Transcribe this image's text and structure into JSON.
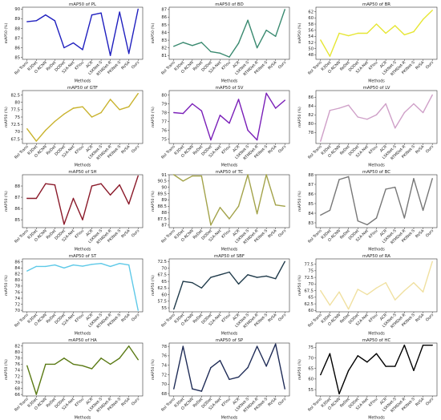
{
  "chart_data": [
    {
      "type": "line",
      "title": "mAP50 of PL",
      "xlabel": "Methods",
      "ylabel": "mAP50 (%)",
      "ylim": [
        84.8,
        90.2
      ],
      "yticks": [
        85,
        86,
        87,
        88,
        89,
        90
      ],
      "color": "#1f1fbf",
      "categories": [
        "RoI Trans",
        "R3Det",
        "O-RCNN",
        "ReDet",
        "DODet",
        "S2A-Net",
        "KFIou",
        "ACR",
        "LSKNet-S",
        "RTMDet-R",
        "PKINet-S",
        "RVSA",
        "Ours"
      ],
      "values": [
        88.7,
        88.8,
        89.4,
        88.8,
        86.0,
        86.5,
        85.8,
        89.4,
        89.6,
        85.2,
        89.7,
        85.4,
        90.0
      ]
    },
    {
      "type": "line",
      "title": "mAP50 of BD",
      "xlabel": "Methods",
      "ylabel": "mAP50 (%)",
      "ylim": [
        80.5,
        87.3
      ],
      "yticks": [
        81,
        82,
        83,
        84,
        85,
        86,
        87
      ],
      "color": "#3a8a70",
      "categories": [
        "RoI Trans",
        "R3Det",
        "O-RCNN",
        "ReDet",
        "DODet",
        "S2A-Net",
        "KFIou",
        "ACR",
        "LSKNet-S",
        "RTMDet-R",
        "PKINet-S",
        "RVSA",
        "Ours"
      ],
      "values": [
        82.2,
        82.7,
        82.3,
        82.7,
        81.5,
        81.3,
        80.8,
        82.6,
        85.6,
        82.0,
        84.3,
        83.5,
        87.0
      ]
    },
    {
      "type": "line",
      "title": "mAP50 of BR",
      "xlabel": "Methods",
      "ylabel": "mAP50 (%)",
      "ylim": [
        46.5,
        63.5
      ],
      "yticks": [
        48,
        50,
        52,
        54,
        56,
        58,
        60,
        62
      ],
      "color": "#e6e633",
      "categories": [
        "RoI Trans",
        "R3Det",
        "O-RCNN",
        "ReDet",
        "DODet",
        "S2A-Net",
        "KFIou",
        "ACR",
        "LSKNet-S",
        "RTMDet-R",
        "PKINet-S",
        "RVSA",
        "Ours"
      ],
      "values": [
        52.8,
        47.5,
        55.0,
        54.2,
        55.0,
        55.0,
        58.0,
        55.0,
        57.5,
        54.5,
        55.5,
        59.5,
        62.5
      ]
    },
    {
      "type": "line",
      "title": "mAP50 of GTF",
      "xlabel": "Methods",
      "ylabel": "mAP50 (%)",
      "ylim": [
        66.0,
        84.0
      ],
      "yticks": [
        67.5,
        70.0,
        72.5,
        75.0,
        77.5,
        80.0,
        82.5
      ],
      "color": "#c9b32e",
      "categories": [
        "RoI Trans",
        "R3Det",
        "O-RCNN",
        "ReDet",
        "DODet",
        "S2A-Net",
        "KFIou",
        "ACR",
        "LSKNet-S",
        "RTMDet-R",
        "PKINet-S",
        "RVSA",
        "Ours"
      ],
      "values": [
        71.0,
        66.8,
        70.5,
        73.5,
        76.0,
        78.0,
        78.5,
        75.0,
        76.5,
        81.0,
        77.5,
        78.5,
        83.0
      ]
    },
    {
      "type": "line",
      "title": "mAP50 of SV",
      "xlabel": "Methods",
      "ylabel": "mAP50 (%)",
      "ylim": [
        74.5,
        80.5
      ],
      "yticks": [
        75,
        76,
        77,
        78,
        79,
        80
      ],
      "color": "#7a1fb8",
      "categories": [
        "RoI Trans",
        "R3Det",
        "O-RCNN",
        "ReDet",
        "DODet",
        "S2A-Net",
        "KFIou",
        "ACR",
        "LSKNet-S",
        "RTMDet-R",
        "PKINet-S",
        "RVSA",
        "Ours"
      ],
      "values": [
        78.0,
        77.9,
        79.0,
        78.2,
        74.9,
        77.7,
        76.8,
        79.5,
        76.0,
        74.9,
        80.2,
        78.5,
        79.4
      ]
    },
    {
      "type": "line",
      "title": "mAP50 of LV",
      "xlabel": "Methods",
      "ylabel": "mAP50 (%)",
      "ylim": [
        75.5,
        87.5
      ],
      "yticks": [
        78,
        80,
        82,
        84,
        86
      ],
      "color": "#cfa0c8",
      "categories": [
        "RoI Trans",
        "R3Det",
        "O-RCNN",
        "ReDet",
        "DODet",
        "S2A-Net",
        "KFIou",
        "ACR",
        "LSKNet-S",
        "RTMDet-R",
        "PKINet-S",
        "RVSA",
        "Ours"
      ],
      "values": [
        76.0,
        83.0,
        83.5,
        84.2,
        81.5,
        81.0,
        82.0,
        84.5,
        79.0,
        82.5,
        84.5,
        82.5,
        86.5
      ]
    },
    {
      "type": "line",
      "title": "mAP50 of SH",
      "xlabel": "Methods",
      "ylabel": "mAP50 (%)",
      "ylim": [
        84.3,
        89.0
      ],
      "yticks": [
        85,
        86,
        87,
        88
      ],
      "color": "#8b1a2a",
      "categories": [
        "RoI Trans",
        "R3Det",
        "O-RCNN",
        "ReDet",
        "DODet",
        "S2A-Net",
        "KFIou",
        "ACR",
        "LSKNet-S",
        "RTMDet-R",
        "PKINet-S",
        "RVSA",
        "Ours"
      ],
      "values": [
        86.9,
        86.9,
        88.2,
        88.1,
        84.6,
        86.9,
        85.0,
        88.0,
        88.2,
        87.2,
        88.1,
        86.4,
        88.9
      ]
    },
    {
      "type": "line",
      "title": "mAP50 of TC",
      "xlabel": "Methods",
      "ylabel": "mAP50 (%)",
      "ylim": [
        86.8,
        91.0
      ],
      "yticks": [
        87.0,
        87.5,
        88.0,
        88.5,
        89.0,
        89.5,
        90.0,
        90.5,
        91.0
      ],
      "color": "#a3a34a",
      "categories": [
        "RoI Trans",
        "R3Det",
        "O-RCNN",
        "ReDet",
        "DODet",
        "S2A-Net",
        "KFIou",
        "ACR",
        "LSKNet-S",
        "RTMDet-R",
        "PKINet-S",
        "RVSA",
        "Ours"
      ],
      "values": [
        91.0,
        90.5,
        90.9,
        90.9,
        87.0,
        88.4,
        87.5,
        88.5,
        91.0,
        87.9,
        91.0,
        88.6,
        88.5
      ]
    },
    {
      "type": "line",
      "title": "mAP50 of BC",
      "xlabel": "Methods",
      "ylabel": "mAP50 (%)",
      "ylim": [
        82.5,
        88.0
      ],
      "yticks": [
        83,
        84,
        85,
        86,
        87,
        88
      ],
      "color": "#777777",
      "categories": [
        "RoI Trans",
        "R3Det",
        "O-RCNN",
        "ReDet",
        "DODet",
        "S2A-Net",
        "KFIou",
        "ACR",
        "LSKNet-S",
        "RTMDet-R",
        "PKINet-S",
        "RVSA",
        "Ours"
      ],
      "values": [
        83.8,
        84.3,
        87.5,
        87.8,
        83.2,
        82.8,
        83.5,
        86.5,
        86.7,
        83.5,
        87.6,
        84.3,
        87.6
      ]
    },
    {
      "type": "line",
      "title": "mAP50 of ST",
      "xlabel": "Methods",
      "ylabel": "mAP50 (%)",
      "ylim": [
        69.5,
        87.0
      ],
      "yticks": [
        70,
        72,
        74,
        76,
        78,
        80,
        82,
        84,
        86
      ],
      "color": "#5ec9e8",
      "categories": [
        "RoI Trans",
        "R3Det",
        "O-RCNN",
        "ReDet",
        "DODet",
        "S2A-Net",
        "KFIou",
        "ACR",
        "LSKNet-S",
        "RTMDet-R",
        "PKINet-S",
        "RVSA",
        "Ours"
      ],
      "values": [
        83.0,
        84.5,
        84.5,
        85.0,
        84.0,
        85.0,
        84.6,
        85.2,
        85.5,
        84.5,
        85.5,
        85.0,
        70.0
      ]
    },
    {
      "type": "line",
      "title": "mAP50 of SBF",
      "xlabel": "Methods",
      "ylabel": "mAP50 (%)",
      "ylim": [
        53.5,
        73.5
      ],
      "yticks": [
        55.0,
        57.5,
        60.0,
        62.5,
        65.0,
        67.5,
        70.0,
        72.5
      ],
      "color": "#1f3a4a",
      "categories": [
        "RoI Trans",
        "R3Det",
        "O-RCNN",
        "ReDet",
        "DODet",
        "S2A-Net",
        "KFIou",
        "ACR",
        "LSKNet-S",
        "RTMDet-R",
        "PKINet-S",
        "RVSA",
        "Ours"
      ],
      "values": [
        54.5,
        65.0,
        64.5,
        62.5,
        66.5,
        67.5,
        68.5,
        64.0,
        67.5,
        66.5,
        67.0,
        66.0,
        72.5
      ]
    },
    {
      "type": "line",
      "title": "mAP50 of RA",
      "xlabel": "Methods",
      "ylabel": "mAP50 (%)",
      "ylim": [
        59.5,
        79.5
      ],
      "yticks": [
        60.0,
        62.5,
        65.0,
        67.5,
        70.0,
        72.5,
        75.0,
        77.5
      ],
      "color": "#f0e0a0",
      "categories": [
        "RoI Trans",
        "R3Det",
        "O-RCNN",
        "ReDet",
        "DODet",
        "S2A-Net",
        "KFIou",
        "ACR",
        "LSKNet-S",
        "RTMDet-R",
        "PKINet-S",
        "RVSA",
        "Ours"
      ],
      "values": [
        67.5,
        62.0,
        67.0,
        60.5,
        68.0,
        66.0,
        68.5,
        70.5,
        64.0,
        67.5,
        70.5,
        67.0,
        78.5
      ]
    },
    {
      "type": "line",
      "title": "mAP50 of HA",
      "xlabel": "Methods",
      "ylabel": "mAP50 (%)",
      "ylim": [
        65.5,
        83.0
      ],
      "yticks": [
        66,
        68,
        70,
        72,
        74,
        76,
        78,
        80,
        82
      ],
      "color": "#5a7a14",
      "categories": [
        "RoI Trans",
        "R3Det",
        "O-RCNN",
        "ReDet",
        "DODet",
        "S2A-Net",
        "KFIou",
        "ACR",
        "LSKNet-S",
        "RTMDet-R",
        "PKINet-S",
        "RVSA",
        "Ours"
      ],
      "values": [
        75.5,
        66.0,
        76.0,
        76.0,
        78.0,
        76.0,
        75.5,
        74.5,
        78.0,
        76.0,
        78.0,
        82.0,
        77.5
      ]
    },
    {
      "type": "line",
      "title": "mAP50 of SP",
      "xlabel": "Methods",
      "ylabel": "mAP50 (%)",
      "ylim": [
        67.5,
        78.7
      ],
      "yticks": [
        68,
        70,
        72,
        74,
        76,
        78
      ],
      "color": "#1f2c57",
      "categories": [
        "RoI Trans",
        "R3Det",
        "O-RCNN",
        "ReDet",
        "DODet",
        "S2A-Net",
        "KFIou",
        "ACR",
        "LSKNet-S",
        "RTMDet-R",
        "PKINet-S",
        "RVSA",
        "Ours"
      ],
      "values": [
        69.0,
        78.0,
        69.0,
        68.5,
        73.5,
        75.0,
        71.0,
        71.5,
        73.5,
        78.0,
        73.8,
        78.5,
        69.0
      ]
    },
    {
      "type": "line",
      "title": "mAP50 of HC",
      "xlabel": "Methods",
      "ylabel": "mAP50 (%)",
      "ylim": [
        52.0,
        77.0
      ],
      "yticks": [
        55,
        60,
        65,
        70,
        75
      ],
      "color": "#000000",
      "categories": [
        "RoI Trans",
        "R3Det",
        "O-RCNN",
        "ReDet",
        "DODet",
        "S2A-Net",
        "KFIou",
        "ACR",
        "LSKNet-S",
        "RTMDet-R",
        "PKINet-S",
        "RVSA",
        "Ours"
      ],
      "values": [
        62.0,
        72.0,
        53.0,
        64.0,
        71.0,
        68.0,
        72.0,
        66.0,
        66.0,
        76.0,
        64.0,
        76.0,
        76.0
      ]
    }
  ]
}
